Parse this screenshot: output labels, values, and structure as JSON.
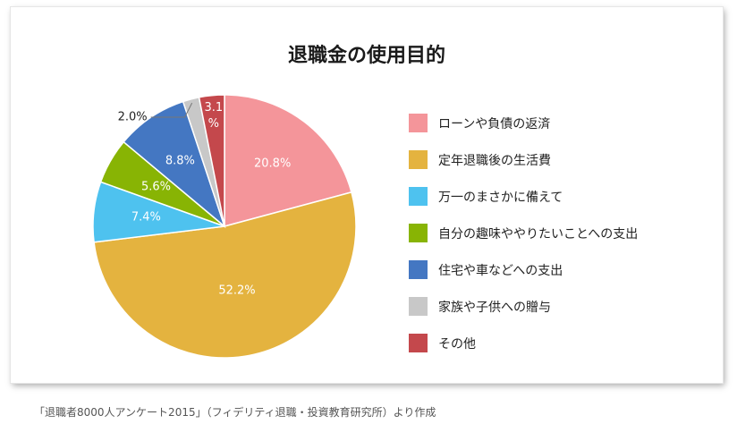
{
  "chart_data": {
    "type": "pie",
    "title": "退職金の使用目的",
    "slices": [
      {
        "label": "ローンや負債の返済",
        "value": 20.8,
        "value_label": "20.8%",
        "color": "#f4959a"
      },
      {
        "label": "定年退職後の生活費",
        "value": 52.2,
        "value_label": "52.2%",
        "color": "#e4b33f"
      },
      {
        "label": "万一のまさかに備えて",
        "value": 7.4,
        "value_label": "7.4%",
        "color": "#4ec2ef"
      },
      {
        "label": "自分の趣味ややりたいことへの支出",
        "value": 5.6,
        "value_label": "5.6%",
        "color": "#88b404"
      },
      {
        "label": "住宅や車などへの支出",
        "value": 8.8,
        "value_label": "8.8%",
        "color": "#4477c2"
      },
      {
        "label": "家族や子供への贈与",
        "value": 2.0,
        "value_label": "2.0%",
        "color": "#c8c8c8"
      },
      {
        "label": "その他",
        "value": 3.1,
        "value_label": "3.1 %",
        "color": "#c4484c"
      }
    ],
    "legend_position": "right"
  },
  "source": "「退職者8000人アンケート2015」（フィデリティ退職・投資教育研究所）より作成"
}
